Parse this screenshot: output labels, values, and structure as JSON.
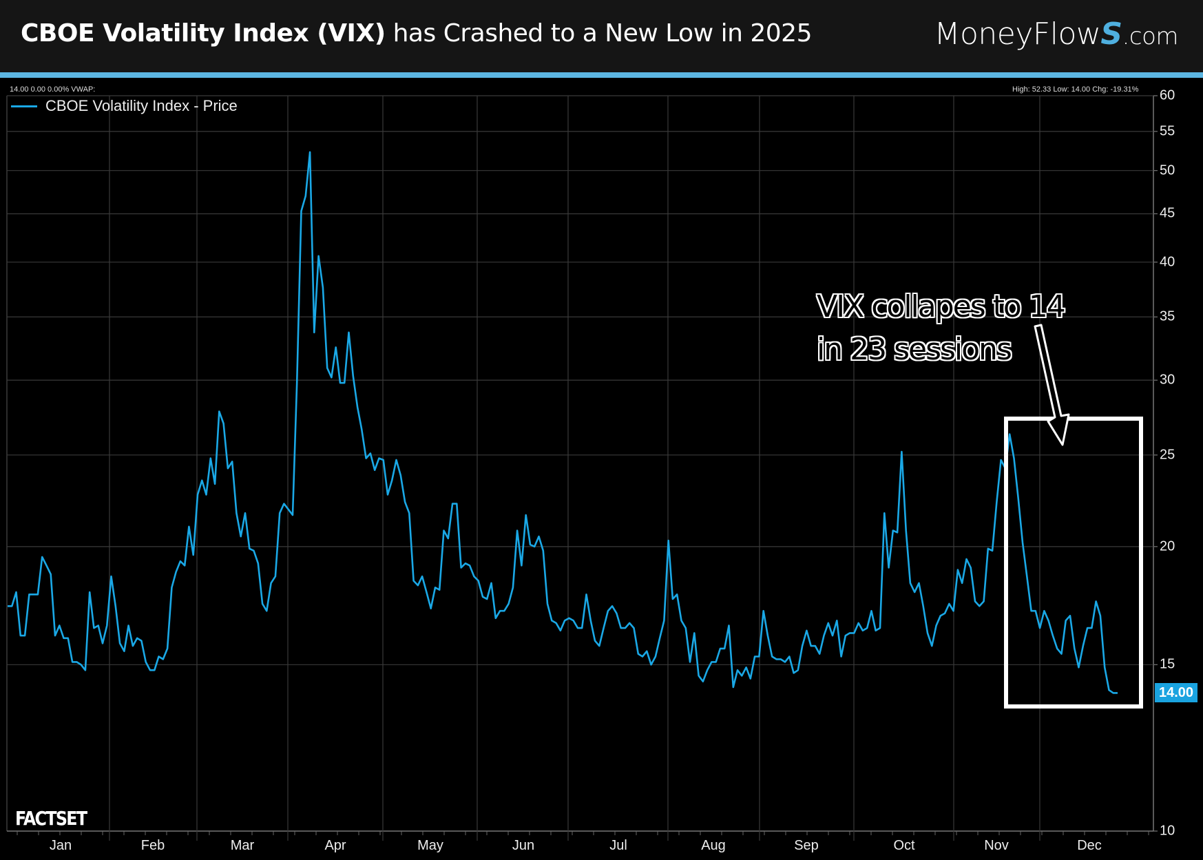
{
  "header": {
    "title_bold": "CBOE Volatility Index (VIX)",
    "title_rest": " has Crashed to a New Low in 2025",
    "logo_main": "MoneyFlow",
    "logo_s": "S",
    "logo_domain": ".com"
  },
  "info_left": "14.00 0.00 0.00%  VWAP:",
  "info_right": "High: 52.33 Low: 14.00 Chg: -19.31%",
  "last_value_tag": "14.00",
  "watermark": "FACTSET",
  "annotation": {
    "line1": "VIX collapes to 14",
    "line2": "in 23 sessions"
  },
  "colors": {
    "series": "#1aa8e6",
    "header_bg": "#151515",
    "stripe": "#5cb6e2",
    "grid": "#3a3a3a",
    "annotation": "#ffffff"
  },
  "chart_data": {
    "type": "line",
    "title": "",
    "xlabel": "",
    "ylabel": "",
    "y_scale": "log",
    "ylim": [
      10,
      60
    ],
    "y_ticks": [
      "60",
      "55",
      "50",
      "45",
      "40",
      "35",
      "30",
      "25",
      "20",
      "15",
      "10"
    ],
    "x_ticks": [
      "Jan",
      "Feb",
      "Mar",
      "Apr",
      "May",
      "Jun",
      "Jul",
      "Aug",
      "Sep",
      "Oct",
      "Nov",
      "Dec"
    ],
    "grid": true,
    "legend_position": "top-left",
    "series": [
      {
        "name": "CBOE Volatility Index - Price",
        "color": "#1aa8e6",
        "date_range": [
          "2025-01-02",
          "2025-12-26"
        ],
        "values": [
          17.3,
          17.3,
          17.9,
          16.1,
          16.1,
          17.8,
          17.8,
          17.8,
          19.5,
          19.1,
          18.7,
          16.1,
          16.5,
          16.0,
          16.0,
          15.1,
          15.1,
          15.0,
          14.8,
          17.9,
          16.4,
          16.5,
          15.8,
          16.5,
          18.6,
          17.3,
          15.8,
          15.5,
          16.5,
          15.7,
          16.0,
          15.9,
          15.1,
          14.8,
          14.8,
          15.3,
          15.2,
          15.6,
          18.1,
          18.8,
          19.3,
          19.1,
          21.0,
          19.6,
          22.7,
          23.5,
          22.7,
          24.8,
          23.3,
          27.8,
          27.0,
          24.2,
          24.6,
          21.7,
          20.5,
          21.7,
          19.9,
          19.8,
          19.2,
          17.4,
          17.1,
          18.3,
          18.6,
          21.7,
          22.2,
          21.9,
          21.6,
          29.8,
          45.3,
          47.0,
          52.3,
          33.7,
          40.6,
          37.6,
          30.9,
          30.2,
          32.5,
          29.8,
          29.8,
          33.7,
          30.3,
          28.1,
          26.6,
          24.8,
          25.1,
          24.1,
          24.8,
          24.7,
          22.7,
          23.5,
          24.7,
          23.8,
          22.3,
          21.7,
          18.4,
          18.2,
          18.6,
          17.9,
          17.2,
          18.1,
          18.0,
          20.8,
          20.4,
          22.2,
          22.2,
          19.0,
          19.2,
          19.1,
          18.6,
          18.4,
          17.7,
          17.6,
          18.3,
          16.8,
          17.1,
          17.1,
          17.4,
          18.1,
          20.8,
          19.1,
          21.6,
          20.1,
          20.0,
          20.5,
          19.8,
          17.4,
          16.7,
          16.6,
          16.3,
          16.7,
          16.8,
          16.7,
          16.4,
          16.4,
          17.8,
          16.7,
          15.9,
          15.7,
          16.4,
          17.1,
          17.3,
          17.0,
          16.4,
          16.4,
          16.6,
          16.4,
          15.4,
          15.3,
          15.5,
          15.0,
          15.3,
          16.0,
          16.7,
          20.3,
          17.6,
          17.8,
          16.7,
          16.4,
          15.1,
          16.2,
          14.6,
          14.4,
          14.8,
          15.1,
          15.1,
          15.6,
          15.6,
          16.5,
          14.2,
          14.8,
          14.6,
          14.9,
          14.5,
          15.3,
          15.3,
          17.1,
          16.1,
          15.3,
          15.2,
          15.2,
          15.1,
          15.3,
          14.7,
          14.8,
          15.7,
          16.3,
          15.7,
          15.7,
          15.4,
          16.1,
          16.6,
          16.1,
          16.7,
          15.3,
          16.1,
          16.2,
          16.2,
          16.6,
          16.3,
          16.4,
          17.1,
          16.3,
          16.4,
          21.7,
          19.0,
          20.8,
          20.7,
          25.2,
          20.8,
          18.3,
          17.9,
          18.3,
          17.3,
          16.2,
          15.7,
          16.5,
          16.9,
          17.0,
          17.4,
          17.1,
          18.9,
          18.3,
          19.4,
          19.0,
          17.5,
          17.3,
          17.5,
          19.9,
          19.8,
          22.3,
          24.7,
          24.2,
          26.3,
          24.8,
          22.5,
          20.2,
          18.6,
          17.1,
          17.1,
          16.4,
          17.1,
          16.7,
          16.1,
          15.6,
          15.4,
          16.7,
          16.9,
          15.6,
          14.9,
          15.7,
          16.4,
          16.4,
          17.5,
          16.9,
          14.9,
          14.1,
          14.0,
          14.0
        ]
      }
    ]
  }
}
